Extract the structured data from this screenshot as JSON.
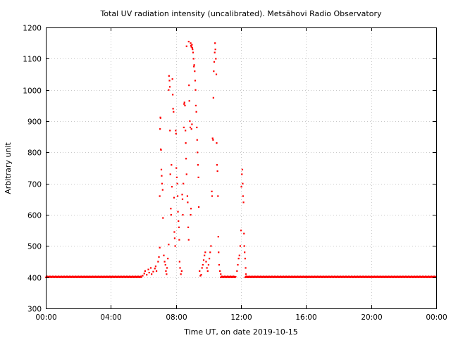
{
  "chart_data": {
    "type": "scatter",
    "title": "Total UV radiation intensity (uncalibrated). Metsähovi Radio Observatory",
    "xlabel": "Time UT, on date 2019-10-15",
    "ylabel": "Arbitrary unit",
    "x_unit": "hours UT",
    "xlim": [
      0,
      24
    ],
    "ylim": [
      300,
      1200
    ],
    "xticks": [
      {
        "value": 0,
        "label": "00:00"
      },
      {
        "value": 4,
        "label": "04:00"
      },
      {
        "value": 8,
        "label": "08:00"
      },
      {
        "value": 12,
        "label": "12:00"
      },
      {
        "value": 16,
        "label": "16:00"
      },
      {
        "value": 20,
        "label": "20:00"
      },
      {
        "value": 24,
        "label": "00:00"
      }
    ],
    "yticks": [
      {
        "value": 300,
        "label": "300"
      },
      {
        "value": 400,
        "label": "400"
      },
      {
        "value": 500,
        "label": "500"
      },
      {
        "value": 600,
        "label": "600"
      },
      {
        "value": 700,
        "label": "700"
      },
      {
        "value": 800,
        "label": "800"
      },
      {
        "value": 900,
        "label": "900"
      },
      {
        "value": 1000,
        "label": "1000"
      },
      {
        "value": 1100,
        "label": "1100"
      },
      {
        "value": 1200,
        "label": "1200"
      }
    ],
    "grid": true,
    "legend": "none",
    "series_color": "#ff0000",
    "series": [
      {
        "baseline_segments": [
          {
            "x_start": 0.0,
            "x_end": 5.9,
            "y": 401
          },
          {
            "x_start": 10.75,
            "x_end": 11.7,
            "y": 401
          },
          {
            "x_start": 12.25,
            "x_end": 24.0,
            "y": 401
          }
        ],
        "points": [
          [
            5.95,
            405
          ],
          [
            6.05,
            412
          ],
          [
            6.1,
            420
          ],
          [
            6.2,
            408
          ],
          [
            6.3,
            425
          ],
          [
            6.35,
            415
          ],
          [
            6.45,
            430
          ],
          [
            6.5,
            410
          ],
          [
            6.6,
            418
          ],
          [
            6.7,
            428
          ],
          [
            6.75,
            435
          ],
          [
            6.8,
            420
          ],
          [
            6.9,
            450
          ],
          [
            6.95,
            465
          ],
          [
            7.0,
            495
          ],
          [
            7.0,
            660
          ],
          [
            7.02,
            875
          ],
          [
            7.04,
            912
          ],
          [
            7.05,
            910
          ],
          [
            7.06,
            810
          ],
          [
            7.08,
            808
          ],
          [
            7.1,
            745
          ],
          [
            7.12,
            725
          ],
          [
            7.14,
            700
          ],
          [
            7.18,
            680
          ],
          [
            7.2,
            590
          ],
          [
            7.25,
            470
          ],
          [
            7.3,
            450
          ],
          [
            7.35,
            440
          ],
          [
            7.38,
            420
          ],
          [
            7.42,
            410
          ],
          [
            7.45,
            430
          ],
          [
            7.5,
            460
          ],
          [
            7.55,
            505
          ],
          [
            7.55,
            1000
          ],
          [
            7.57,
            1045
          ],
          [
            7.6,
            1030
          ],
          [
            7.62,
            1010
          ],
          [
            7.63,
            870
          ],
          [
            7.65,
            730
          ],
          [
            7.68,
            620
          ],
          [
            7.7,
            600
          ],
          [
            7.72,
            760
          ],
          [
            7.75,
            690
          ],
          [
            7.78,
            1035
          ],
          [
            7.8,
            985
          ],
          [
            7.82,
            940
          ],
          [
            7.85,
            930
          ],
          [
            7.88,
            655
          ],
          [
            7.9,
            545
          ],
          [
            7.92,
            525
          ],
          [
            7.95,
            500
          ],
          [
            7.98,
            870
          ],
          [
            8.0,
            860
          ],
          [
            8.02,
            750
          ],
          [
            8.05,
            720
          ],
          [
            8.08,
            700
          ],
          [
            8.1,
            660
          ],
          [
            8.12,
            610
          ],
          [
            8.15,
            580
          ],
          [
            8.18,
            560
          ],
          [
            8.2,
            520
          ],
          [
            8.22,
            450
          ],
          [
            8.25,
            430
          ],
          [
            8.3,
            410
          ],
          [
            8.35,
            420
          ],
          [
            8.38,
            665
          ],
          [
            8.4,
            650
          ],
          [
            8.42,
            600
          ],
          [
            8.45,
            700
          ],
          [
            8.48,
            880
          ],
          [
            8.5,
            955
          ],
          [
            8.52,
            960
          ],
          [
            8.55,
            950
          ],
          [
            8.58,
            870
          ],
          [
            8.6,
            830
          ],
          [
            8.62,
            780
          ],
          [
            8.65,
            730
          ],
          [
            8.7,
            660
          ],
          [
            8.72,
            640
          ],
          [
            8.75,
            560
          ],
          [
            8.78,
            520
          ],
          [
            8.8,
            1015
          ],
          [
            8.82,
            965
          ],
          [
            8.85,
            900
          ],
          [
            8.88,
            880
          ],
          [
            8.9,
            600
          ],
          [
            8.92,
            620
          ],
          [
            8.95,
            875
          ],
          [
            8.98,
            890
          ],
          [
            8.65,
            1140
          ],
          [
            8.78,
            1155
          ],
          [
            8.9,
            1150
          ],
          [
            8.92,
            1142
          ],
          [
            8.95,
            1138
          ],
          [
            8.98,
            1145
          ],
          [
            9.0,
            1135
          ],
          [
            9.02,
            1130
          ],
          [
            9.05,
            1120
          ],
          [
            9.08,
            1100
          ],
          [
            9.1,
            1075
          ],
          [
            9.12,
            1080
          ],
          [
            9.15,
            1060
          ],
          [
            9.18,
            1030
          ],
          [
            9.2,
            1000
          ],
          [
            9.22,
            950
          ],
          [
            9.25,
            930
          ],
          [
            9.28,
            880
          ],
          [
            9.3,
            840
          ],
          [
            9.32,
            800
          ],
          [
            9.35,
            760
          ],
          [
            9.38,
            720
          ],
          [
            9.4,
            625
          ],
          [
            9.45,
            420
          ],
          [
            9.5,
            405
          ],
          [
            9.55,
            408
          ],
          [
            9.6,
            430
          ],
          [
            9.65,
            440
          ],
          [
            9.7,
            455
          ],
          [
            9.75,
            470
          ],
          [
            9.8,
            480
          ],
          [
            9.85,
            450
          ],
          [
            9.9,
            430
          ],
          [
            9.95,
            420
          ],
          [
            10.0,
            440
          ],
          [
            10.05,
            460
          ],
          [
            10.1,
            480
          ],
          [
            10.15,
            500
          ],
          [
            10.2,
            675
          ],
          [
            10.22,
            660
          ],
          [
            10.25,
            845
          ],
          [
            10.28,
            840
          ],
          [
            10.3,
            975
          ],
          [
            10.32,
            1060
          ],
          [
            10.35,
            1090
          ],
          [
            10.38,
            1120
          ],
          [
            10.4,
            1150
          ],
          [
            10.42,
            1130
          ],
          [
            10.45,
            1100
          ],
          [
            10.48,
            1050
          ],
          [
            10.5,
            830
          ],
          [
            10.52,
            760
          ],
          [
            10.55,
            740
          ],
          [
            10.58,
            660
          ],
          [
            10.6,
            530
          ],
          [
            10.62,
            480
          ],
          [
            10.65,
            440
          ],
          [
            10.7,
            420
          ],
          [
            10.75,
            410
          ],
          [
            11.75,
            420
          ],
          [
            11.8,
            440
          ],
          [
            11.85,
            460
          ],
          [
            11.9,
            470
          ],
          [
            11.95,
            500
          ],
          [
            12.0,
            550
          ],
          [
            12.02,
            690
          ],
          [
            12.05,
            730
          ],
          [
            12.08,
            745
          ],
          [
            12.1,
            700
          ],
          [
            12.12,
            660
          ],
          [
            12.15,
            640
          ],
          [
            12.18,
            540
          ],
          [
            12.2,
            500
          ],
          [
            12.22,
            480
          ],
          [
            12.25,
            460
          ],
          [
            12.28,
            430
          ],
          [
            12.3,
            410
          ]
        ]
      }
    ]
  }
}
